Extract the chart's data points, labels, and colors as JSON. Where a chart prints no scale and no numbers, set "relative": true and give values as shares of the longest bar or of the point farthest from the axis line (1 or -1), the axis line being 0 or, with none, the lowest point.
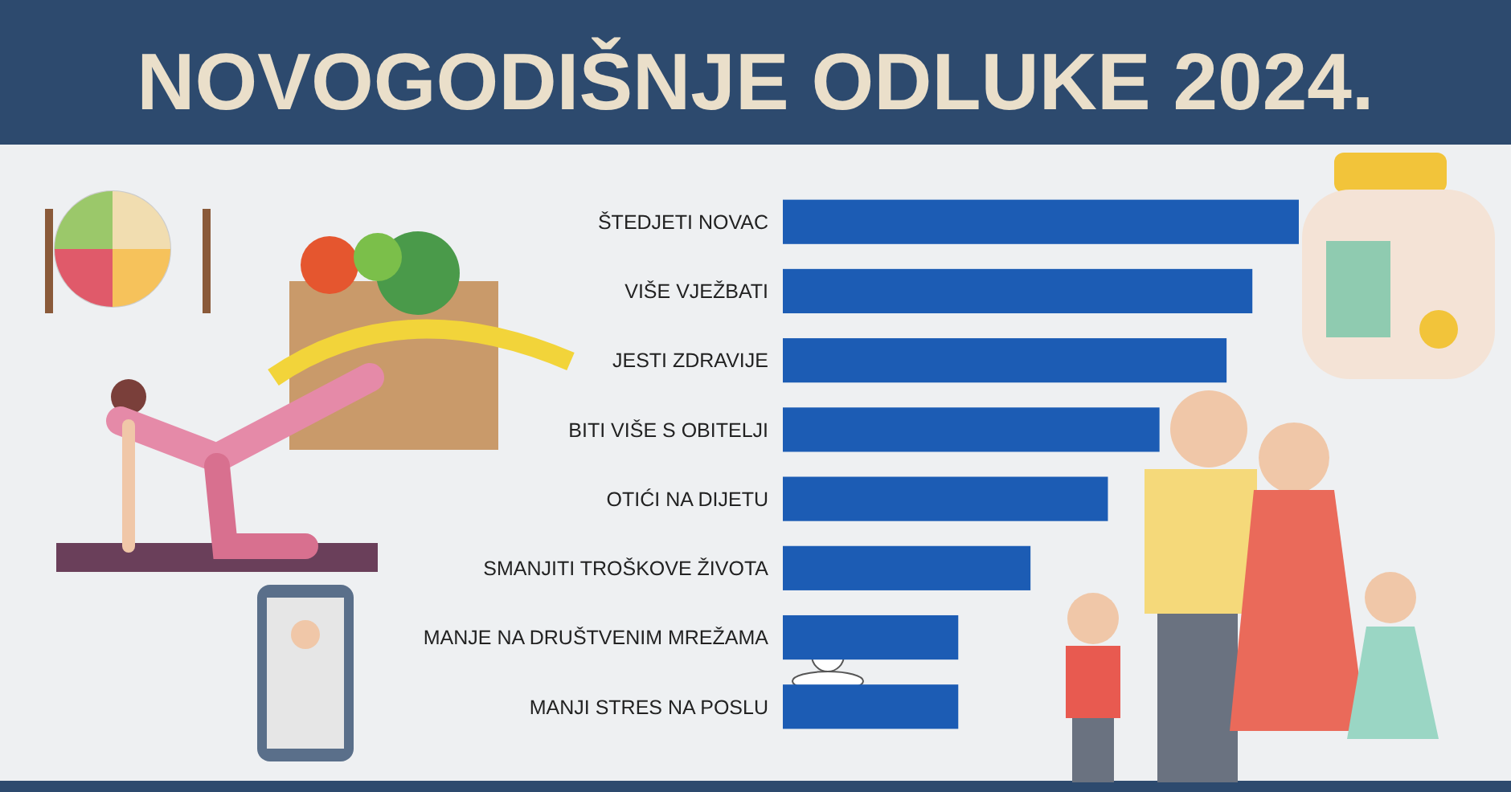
{
  "chart_data": {
    "type": "bar",
    "orientation": "horizontal",
    "relative": true,
    "title": "NOVOGODIŠNJE ODLUKE 2024.",
    "categories": [
      "ŠTEDJETI NOVAC",
      "VIŠE VJEŽBATI",
      "JESTI ZDRAVIJE",
      "BITI VIŠE S OBITELJI",
      "OTIĆI NA DIJETU",
      "SMANJITI TROŠKOVE ŽIVOTA",
      "MANJE NA DRUŠTVENIM MREŽAMA",
      "MANJI STRES NA POSLU"
    ],
    "values": [
      1,
      0.91,
      0.86,
      0.73,
      0.63,
      0.48,
      0.34,
      0.34
    ],
    "color": "#1c5cb4"
  }
}
